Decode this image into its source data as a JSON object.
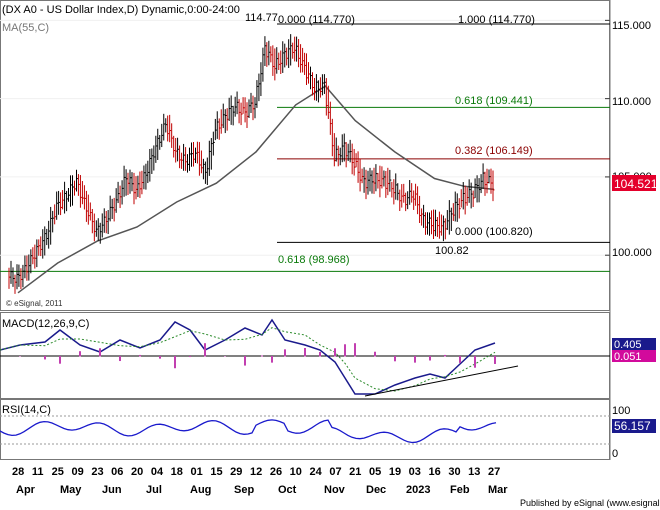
{
  "chart_data": {
    "type": "line",
    "title": "(DX A0 - US Dollar Index,D) Dynamic,0:00-24:00",
    "price_panel": {
      "ma_label": "MA(55,C)",
      "y_ticks": [
        "115.000",
        "110.000",
        "105.000",
        "100.000"
      ],
      "y_tick_values": [
        115,
        110,
        105,
        100
      ],
      "ylim": [
        96.5,
        116.3
      ],
      "last_price": "104.521",
      "last_price_value": 104.521,
      "fib_levels": [
        {
          "label": "0.000 (114.770)",
          "value": 114.77,
          "color": "#000000"
        },
        {
          "label": "1.000 (114.770)",
          "value": 114.77,
          "color": "#000000"
        },
        {
          "label": "0.618 (109.441)",
          "value": 109.441,
          "color": "#0a7a0a"
        },
        {
          "label": "0.382 (106.149)",
          "value": 106.149,
          "color": "#8b0000"
        },
        {
          "label": "0.000 (100.820)",
          "value": 100.82,
          "color": "#000000"
        },
        {
          "label": "0.618 (98.968)",
          "value": 98.968,
          "color": "#0a7a0a"
        }
      ],
      "high_annotation": "114.77",
      "low_annotation": "100.82",
      "watermark": "© eSignal, 2011"
    },
    "macd_panel": {
      "label": "MACD(12,26,9,C)",
      "value1": "0.405",
      "value2": "0.051"
    },
    "rsi_panel": {
      "label": "RSI(14,C)",
      "y_ticks": [
        "100",
        "0"
      ],
      "value": "56.157"
    },
    "x_tick_labels": [
      "28",
      "11",
      "25",
      "09",
      "23",
      "06",
      "20",
      "04",
      "18",
      "01",
      "15",
      "29",
      "12",
      "26",
      "10",
      "24",
      "07",
      "21",
      "05",
      "19",
      "03",
      "16",
      "30",
      "13",
      "27"
    ],
    "x_month_labels": [
      "Apr",
      "May",
      "Jun",
      "Jul",
      "Aug",
      "Sep",
      "Oct",
      "Nov",
      "Dec",
      "2023",
      "Feb",
      "Mar"
    ],
    "price_series": [
      [
        "2022-03-28",
        98.6
      ],
      [
        "2022-04-04",
        99.1
      ],
      [
        "2022-04-11",
        100.4
      ],
      [
        "2022-04-18",
        101.2
      ],
      [
        "2022-04-25",
        103.2
      ],
      [
        "2022-05-02",
        103.7
      ],
      [
        "2022-05-09",
        104.8
      ],
      [
        "2022-05-16",
        102.9
      ],
      [
        "2022-05-23",
        101.6
      ],
      [
        "2022-05-30",
        102.2
      ],
      [
        "2022-06-06",
        103.5
      ],
      [
        "2022-06-13",
        104.9
      ],
      [
        "2022-06-20",
        104.2
      ],
      [
        "2022-06-27",
        105.1
      ],
      [
        "2022-07-04",
        107.0
      ],
      [
        "2022-07-11",
        108.3
      ],
      [
        "2022-07-18",
        106.7
      ],
      [
        "2022-07-25",
        105.9
      ],
      [
        "2022-08-01",
        106.6
      ],
      [
        "2022-08-08",
        105.2
      ],
      [
        "2022-08-15",
        108.1
      ],
      [
        "2022-08-22",
        108.8
      ],
      [
        "2022-08-29",
        109.6
      ],
      [
        "2022-09-05",
        109.0
      ],
      [
        "2022-09-12",
        109.8
      ],
      [
        "2022-09-19",
        113.2
      ],
      [
        "2022-09-26",
        112.1
      ],
      [
        "2022-10-03",
        112.8
      ],
      [
        "2022-10-10",
        113.3
      ],
      [
        "2022-10-17",
        111.9
      ],
      [
        "2022-10-24",
        110.7
      ],
      [
        "2022-10-31",
        110.8
      ],
      [
        "2022-11-07",
        106.3
      ],
      [
        "2022-11-14",
        106.9
      ],
      [
        "2022-11-21",
        105.9
      ],
      [
        "2022-11-28",
        104.6
      ],
      [
        "2022-12-05",
        104.9
      ],
      [
        "2022-12-12",
        104.7
      ],
      [
        "2022-12-19",
        104.3
      ],
      [
        "2022-12-26",
        103.5
      ],
      [
        "2023-01-02",
        103.9
      ],
      [
        "2023-01-09",
        102.2
      ],
      [
        "2023-01-16",
        101.9
      ],
      [
        "2023-01-23",
        101.8
      ],
      [
        "2023-01-30",
        102.9
      ],
      [
        "2023-02-06",
        103.6
      ],
      [
        "2023-02-13",
        104.0
      ],
      [
        "2023-02-20",
        104.9
      ],
      [
        "2023-02-27",
        104.52
      ]
    ],
    "ma_series": [
      [
        "2022-03-28",
        97.6
      ],
      [
        "2022-04-25",
        99.5
      ],
      [
        "2022-05-23",
        100.9
      ],
      [
        "2022-06-20",
        101.8
      ],
      [
        "2022-07-18",
        103.4
      ],
      [
        "2022-08-15",
        104.6
      ],
      [
        "2022-09-12",
        106.6
      ],
      [
        "2022-10-10",
        109.6
      ],
      [
        "2022-10-31",
        110.8
      ],
      [
        "2022-11-21",
        108.6
      ],
      [
        "2022-12-19",
        106.6
      ],
      [
        "2023-01-16",
        104.9
      ],
      [
        "2023-02-06",
        104.4
      ],
      [
        "2023-02-27",
        104.2
      ]
    ]
  }
}
